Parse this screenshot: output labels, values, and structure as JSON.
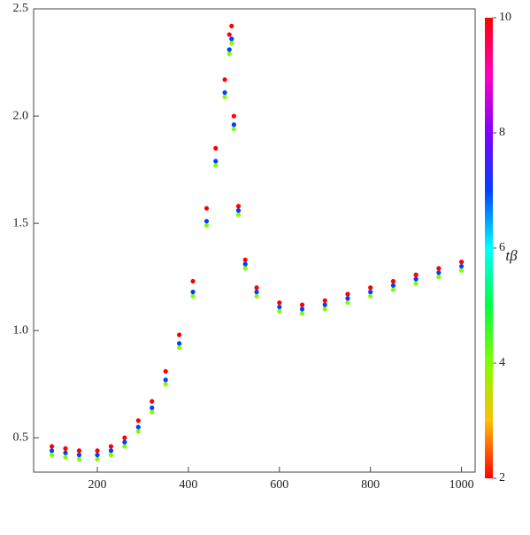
{
  "chart_data": {
    "type": "scatter",
    "x": [
      100,
      130,
      160,
      200,
      230,
      260,
      290,
      320,
      350,
      380,
      410,
      440,
      460,
      480,
      490,
      495,
      500,
      510,
      525,
      550,
      600,
      650,
      700,
      750,
      800,
      850,
      900,
      950,
      1000,
      100,
      130,
      160,
      200,
      230,
      260,
      290,
      320,
      350,
      380,
      410,
      440,
      460,
      480,
      490,
      495,
      500,
      510,
      525,
      550,
      600,
      650,
      700,
      750,
      800,
      850,
      900,
      950,
      1000,
      100,
      130,
      160,
      200,
      230,
      260,
      290,
      320,
      350,
      380,
      410,
      440,
      460,
      480,
      490,
      495,
      500,
      510,
      525,
      550,
      600,
      650,
      700,
      750,
      800,
      850,
      900,
      950,
      1000
    ],
    "y": [
      0.42,
      0.41,
      0.4,
      0.4,
      0.42,
      0.46,
      0.53,
      0.62,
      0.75,
      0.92,
      1.16,
      1.49,
      1.77,
      2.09,
      2.29,
      2.34,
      1.94,
      1.54,
      1.29,
      1.16,
      1.09,
      1.08,
      1.1,
      1.13,
      1.16,
      1.19,
      1.22,
      1.25,
      1.28,
      0.44,
      0.43,
      0.42,
      0.42,
      0.44,
      0.48,
      0.55,
      0.64,
      0.77,
      0.94,
      1.18,
      1.51,
      1.79,
      2.11,
      2.31,
      2.36,
      1.96,
      1.56,
      1.31,
      1.18,
      1.11,
      1.1,
      1.12,
      1.15,
      1.18,
      1.21,
      1.24,
      1.27,
      1.3,
      0.46,
      0.45,
      0.44,
      0.44,
      0.46,
      0.5,
      0.58,
      0.67,
      0.81,
      0.98,
      1.23,
      1.57,
      1.85,
      2.17,
      2.38,
      2.42,
      2.0,
      1.58,
      1.33,
      1.2,
      1.13,
      1.12,
      1.14,
      1.17,
      1.2,
      1.23,
      1.26,
      1.29,
      1.32
    ],
    "c": [
      4,
      4,
      4,
      4,
      4,
      4,
      4,
      4,
      4,
      4,
      4,
      4,
      4,
      4,
      4,
      4,
      4,
      4,
      4,
      4,
      4,
      4,
      4,
      4,
      4,
      4,
      4,
      4,
      4,
      7,
      7,
      7,
      7,
      7,
      7,
      7,
      7,
      7,
      7,
      7,
      7,
      7,
      7,
      7,
      7,
      7,
      7,
      7,
      7,
      7,
      7,
      7,
      7,
      7,
      7,
      7,
      7,
      7,
      10,
      10,
      10,
      10,
      10,
      10,
      10,
      10,
      10,
      10,
      10,
      10,
      10,
      10,
      10,
      10,
      10,
      10,
      10,
      10,
      10,
      10,
      10,
      10,
      10,
      10,
      10,
      10,
      10
    ],
    "xlim": [
      60,
      1030
    ],
    "xticks": [
      200,
      400,
      600,
      800,
      1000
    ],
    "ylim": [
      0.34,
      2.5
    ],
    "yticks": [
      0.5,
      {
        "value": 1,
        "label": "1.0"
      },
      1.5,
      {
        "value": 2,
        "label": "2.0"
      },
      2.5
    ],
    "colorbar": {
      "lim": [
        2,
        10
      ],
      "ticks": [
        2,
        4,
        6,
        8,
        10
      ],
      "label": "tβ"
    }
  }
}
